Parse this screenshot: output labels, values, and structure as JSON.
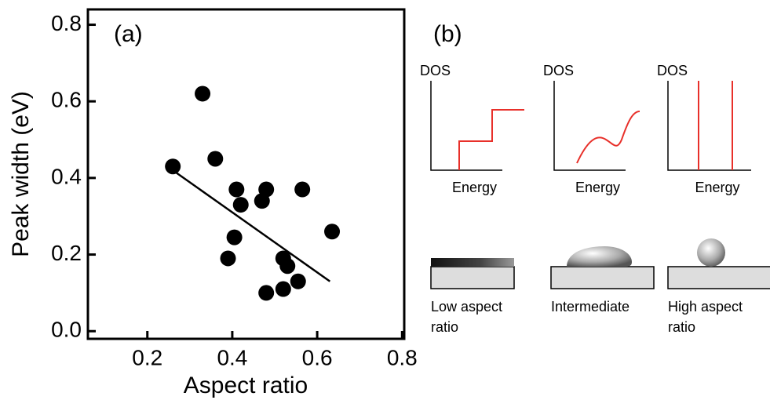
{
  "chart_data": {
    "type": "scatter",
    "panel_label": "(a)",
    "x_label": "Aspect ratio",
    "y_label": "Peak width (eV)",
    "xlim": [
      0.06,
      0.805
    ],
    "ylim": [
      -0.02,
      0.84
    ],
    "xticks": [
      0.2,
      0.4,
      0.6,
      0.8
    ],
    "yticks": [
      {
        "value": 0,
        "label": "0.0"
      },
      0.2,
      0.4,
      0.6,
      0.8
    ],
    "color": "#000000",
    "points": {
      "x": [
        0.26,
        0.33,
        0.36,
        0.41,
        0.42,
        0.405,
        0.39,
        0.47,
        0.48,
        0.565,
        0.635,
        0.52,
        0.53,
        0.48,
        0.52,
        0.555
      ],
      "y": [
        0.43,
        0.62,
        0.45,
        0.37,
        0.33,
        0.245,
        0.19,
        0.34,
        0.37,
        0.37,
        0.26,
        0.19,
        0.17,
        0.1,
        0.11,
        0.13
      ]
    },
    "fit": {
      "x": [
        0.26,
        0.63
      ],
      "y": [
        0.42,
        0.13
      ]
    }
  },
  "panel_b": {
    "label": "(b)",
    "graphs": [
      {
        "y_label": "DOS",
        "x_label": "Energy"
      },
      {
        "y_label": "DOS",
        "x_label": "Energy"
      },
      {
        "y_label": "DOS",
        "x_label": "Energy"
      }
    ],
    "captions": [
      [
        "Low aspect",
        "ratio"
      ],
      [
        "Intermediate"
      ],
      [
        "High aspect",
        "ratio"
      ]
    ]
  }
}
